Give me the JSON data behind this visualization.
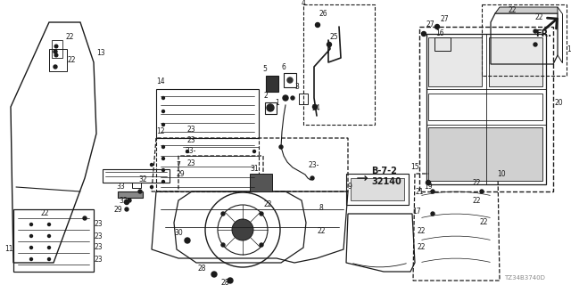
{
  "bg_color": "#ffffff",
  "line_color": "#1a1a1a",
  "gray_color": "#888888",
  "fig_width": 6.4,
  "fig_height": 3.2,
  "dpi": 100,
  "part_number": "TZ34B3740D",
  "bold_label": "B-7-2\n32140"
}
